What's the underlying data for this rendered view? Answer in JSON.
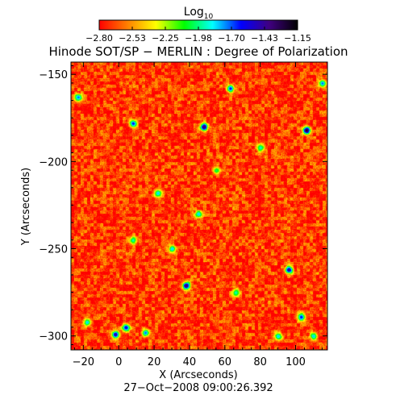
{
  "chart_data": {
    "type": "heatmap",
    "title": "Hinode SOT/SP − MERLIN : Degree of Polarization",
    "subtitle": "27−Oct−2008 09:00:26.392",
    "xlabel": "X (Arcseconds)",
    "ylabel": "Y (Arcseconds)",
    "xlim": [
      -27,
      118
    ],
    "ylim": [
      -308,
      -143
    ],
    "x_ticks": [
      -20,
      0,
      20,
      40,
      60,
      80,
      100
    ],
    "x_tick_labels": [
      "−20",
      "0",
      "20",
      "40",
      "60",
      "80",
      "100"
    ],
    "y_ticks": [
      -300,
      -250,
      -200,
      -150
    ],
    "y_tick_labels": [
      "−300",
      "−250",
      "−200",
      "−150"
    ],
    "colorbar": {
      "label_main": "Log",
      "label_sub": "10",
      "range": [
        -2.8,
        -1.15
      ],
      "tick_labels": [
        "−2.80",
        "−2.53",
        "−2.25",
        "−1.98",
        "−1.70",
        "−1.43",
        "−1.15"
      ],
      "colormap": [
        "#ff0000",
        "#ff8000",
        "#ffff00",
        "#00ff00",
        "#00ffff",
        "#0000ff",
        "#400080",
        "#000000"
      ]
    },
    "grid": false,
    "background_value": -2.7,
    "features": [
      {
        "x": 48,
        "y": -180,
        "value": -1.3
      },
      {
        "x": 106,
        "y": -182,
        "value": -1.2
      },
      {
        "x": 38,
        "y": -271,
        "value": -1.3
      },
      {
        "x": 96,
        "y": -262,
        "value": -1.4
      },
      {
        "x": -2,
        "y": -299,
        "value": -1.4
      },
      {
        "x": 8,
        "y": -178,
        "value": -1.6
      },
      {
        "x": 63,
        "y": -158,
        "value": -1.6
      },
      {
        "x": -23,
        "y": -163,
        "value": -1.7
      },
      {
        "x": 4,
        "y": -295,
        "value": -1.5
      },
      {
        "x": 103,
        "y": -289,
        "value": -1.6
      },
      {
        "x": 22,
        "y": -218,
        "value": -1.8
      },
      {
        "x": 45,
        "y": -230,
        "value": -1.8
      },
      {
        "x": 15,
        "y": -298,
        "value": -1.7
      },
      {
        "x": 66,
        "y": -275,
        "value": -1.9
      },
      {
        "x": 90,
        "y": -300,
        "value": -1.8
      },
      {
        "x": 80,
        "y": -192,
        "value": -1.9
      },
      {
        "x": 30,
        "y": -250,
        "value": -1.8
      },
      {
        "x": 115,
        "y": -155,
        "value": -1.7
      },
      {
        "x": -18,
        "y": -292,
        "value": -1.8
      },
      {
        "x": 55,
        "y": -205,
        "value": -2.0
      },
      {
        "x": 8,
        "y": -245,
        "value": -1.9
      },
      {
        "x": 110,
        "y": -300,
        "value": -1.8
      }
    ]
  }
}
